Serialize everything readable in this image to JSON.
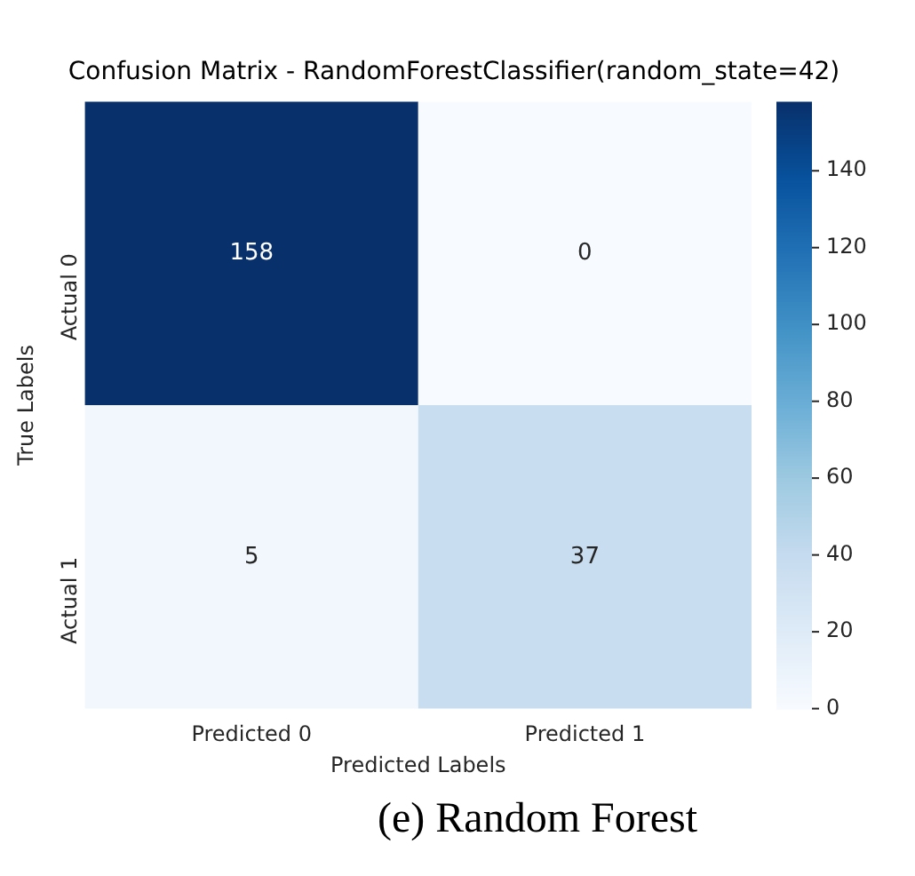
{
  "chart_data": {
    "type": "heatmap",
    "title": "Confusion Matrix - RandomForestClassifier(random_state=42)",
    "xlabel": "Predicted Labels",
    "ylabel": "True Labels",
    "categories": [
      "Predicted 0",
      "Predicted 1"
    ],
    "y_categories": [
      "Actual 0",
      "Actual 1"
    ],
    "cells": [
      [
        158,
        0
      ],
      [
        5,
        37
      ]
    ],
    "data_labels": true,
    "clim": [
      0,
      158
    ],
    "cticks": [
      0,
      20,
      40,
      60,
      80,
      100,
      120,
      140
    ],
    "annotations": [
      "(e) Random Forest"
    ]
  }
}
